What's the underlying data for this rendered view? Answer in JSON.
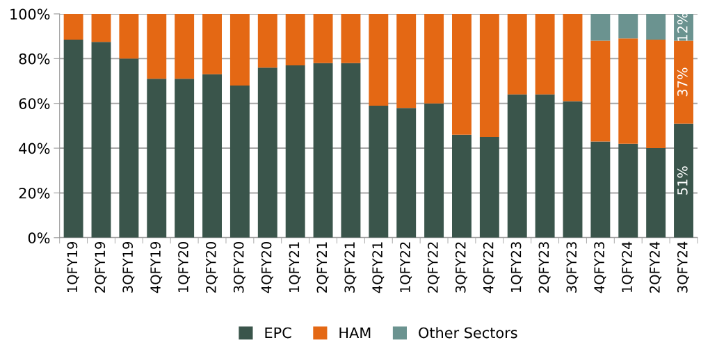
{
  "chart_data": {
    "type": "bar",
    "stacked": true,
    "categories": [
      "1QFY19",
      "2QFY19",
      "3QFY19",
      "4QFY19",
      "1QFY20",
      "2QFY20",
      "3QFY20",
      "4QFY20",
      "1QFY21",
      "2QFY21",
      "3QFY21",
      "4QFY21",
      "1QFY22",
      "2QFY22",
      "3QFY22",
      "4QFY22",
      "1QFY23",
      "2QFY23",
      "3QFY23",
      "4QFY23",
      "1QFY24",
      "2QFY24",
      "3QFY24"
    ],
    "series": [
      {
        "name": "EPC",
        "color": "#3a554b",
        "values": [
          88.5,
          87.5,
          80,
          71,
          71,
          73,
          68,
          76,
          77,
          78,
          78,
          59,
          58,
          60,
          46,
          45,
          64,
          64,
          61,
          43,
          42,
          40,
          51
        ],
        "value_labels": [
          null,
          null,
          null,
          null,
          null,
          null,
          null,
          null,
          null,
          null,
          null,
          null,
          null,
          null,
          null,
          null,
          null,
          null,
          null,
          null,
          null,
          null,
          "51%"
        ]
      },
      {
        "name": "HAM",
        "color": "#e46814",
        "values": [
          11.5,
          12.5,
          20,
          29,
          29,
          27,
          32,
          24,
          23,
          22,
          22,
          41,
          42,
          40,
          54,
          55,
          36,
          36,
          39,
          45,
          47,
          48.5,
          37
        ],
        "value_labels": [
          null,
          null,
          null,
          null,
          null,
          null,
          null,
          null,
          null,
          null,
          null,
          null,
          null,
          null,
          null,
          null,
          null,
          null,
          null,
          null,
          null,
          null,
          "37%"
        ]
      },
      {
        "name": "Other Sectors",
        "color": "#6b9390",
        "values": [
          0,
          0,
          0,
          0,
          0,
          0,
          0,
          0,
          0,
          0,
          0,
          0,
          0,
          0,
          0,
          0,
          0,
          0,
          0,
          12,
          11,
          11.5,
          12
        ],
        "value_labels": [
          null,
          null,
          null,
          null,
          null,
          null,
          null,
          null,
          null,
          null,
          null,
          null,
          null,
          null,
          null,
          null,
          null,
          null,
          null,
          null,
          null,
          null,
          "12%"
        ]
      }
    ],
    "ylim": [
      0,
      100
    ],
    "yticks": [
      {
        "value": 0,
        "label": "0%"
      },
      {
        "value": 20,
        "label": "20%"
      },
      {
        "value": 40,
        "label": "40%"
      },
      {
        "value": 60,
        "label": "60%"
      },
      {
        "value": 80,
        "label": "80%"
      },
      {
        "value": 100,
        "label": "100%"
      }
    ],
    "grid": "y",
    "legend": "bottom"
  }
}
